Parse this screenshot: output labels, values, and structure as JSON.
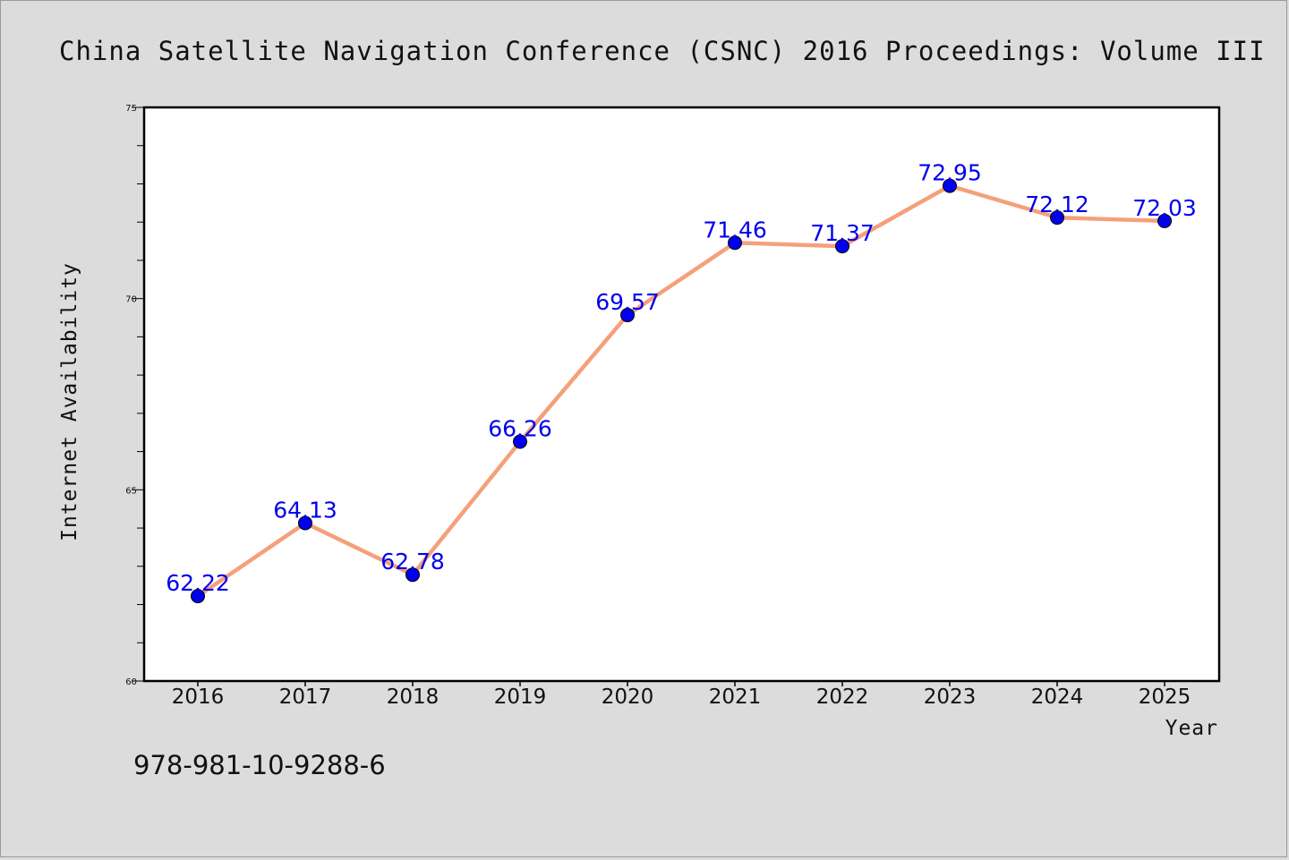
{
  "colors": {
    "background": "#dcdcdc",
    "plot_background": "#ffffff",
    "line": "#f5a07a",
    "marker": "#0000ee",
    "data_label": "#0000ee",
    "frame": "#000000"
  },
  "footer": {
    "isbn": "978-981-10-9288-6"
  },
  "chart_data": {
    "type": "line",
    "title": "China Satellite Navigation Conference (CSNC) 2016 Proceedings: Volume III",
    "xlabel": "Year",
    "ylabel": "Internet Availability",
    "categories": [
      "2016",
      "2017",
      "2018",
      "2019",
      "2020",
      "2021",
      "2022",
      "2023",
      "2024",
      "2025"
    ],
    "series": [
      {
        "values": [
          62.22,
          64.13,
          62.78,
          66.26,
          69.57,
          71.46,
          71.37,
          72.95,
          72.12,
          72.03
        ],
        "labels": [
          "62.22",
          "64.13",
          "62.78",
          "66.26",
          "69.57",
          "71.46",
          "71.37",
          "72.95",
          "72.12",
          "72.03"
        ]
      }
    ],
    "ylim": [
      60,
      75
    ],
    "yticks": [
      60,
      65,
      70,
      75
    ],
    "ytick_labels": [
      "60",
      "65",
      "70",
      "75"
    ],
    "y_minor_step": 1,
    "grid": false,
    "legend": "none",
    "marker": "circle"
  }
}
